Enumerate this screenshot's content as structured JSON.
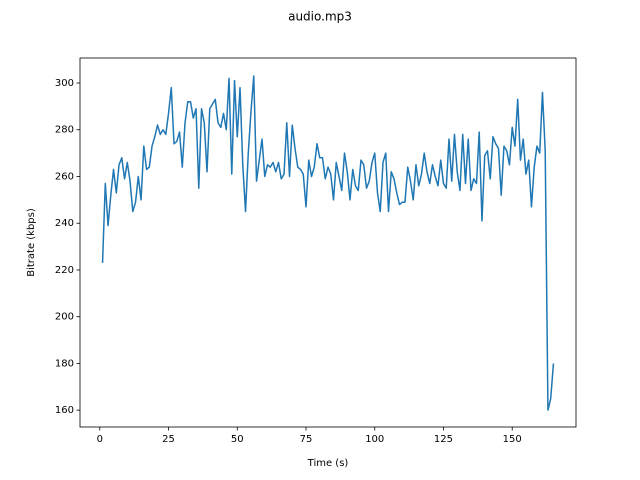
{
  "chart_data": {
    "type": "line",
    "title": "audio.mp3",
    "x_label": "Time (s)",
    "y_label": "Bitrate (kbps)",
    "x": [
      1,
      2,
      3,
      4,
      5,
      6,
      7,
      8,
      9,
      10,
      11,
      12,
      13,
      14,
      15,
      16,
      17,
      18,
      19,
      20,
      21,
      22,
      23,
      24,
      25,
      26,
      27,
      28,
      29,
      30,
      31,
      32,
      33,
      34,
      35,
      36,
      37,
      38,
      39,
      40,
      41,
      42,
      43,
      44,
      45,
      46,
      47,
      48,
      49,
      50,
      51,
      52,
      53,
      54,
      55,
      56,
      57,
      58,
      59,
      60,
      61,
      62,
      63,
      64,
      65,
      66,
      67,
      68,
      69,
      70,
      71,
      72,
      73,
      74,
      75,
      76,
      77,
      78,
      79,
      80,
      81,
      82,
      83,
      84,
      85,
      86,
      87,
      88,
      89,
      90,
      91,
      92,
      93,
      94,
      95,
      96,
      97,
      98,
      99,
      100,
      101,
      102,
      103,
      104,
      105,
      106,
      107,
      108,
      109,
      110,
      111,
      112,
      113,
      114,
      115,
      116,
      117,
      118,
      119,
      120,
      121,
      122,
      123,
      124,
      125,
      126,
      127,
      128,
      129,
      130,
      131,
      132,
      133,
      134,
      135,
      136,
      137,
      138,
      139,
      140,
      141,
      142,
      143,
      144,
      145,
      146,
      147,
      148,
      149,
      150,
      151,
      152,
      153,
      154,
      155,
      156,
      157,
      158,
      159,
      160,
      161,
      162,
      163,
      164,
      165
    ],
    "series": [
      {
        "name": "bitrate",
        "color": "#1f77b4",
        "values": [
          223,
          257,
          239,
          252,
          263,
          253,
          265,
          268,
          259,
          266,
          258,
          245,
          249,
          260,
          250,
          273,
          263,
          264,
          273,
          277,
          282,
          278,
          280,
          278,
          287,
          298,
          274,
          275,
          279,
          264,
          283,
          292,
          292,
          285,
          289,
          255,
          289,
          283,
          262,
          289,
          291,
          293,
          283,
          281,
          287,
          280,
          302,
          261,
          301,
          277,
          298,
          265,
          245,
          270,
          288,
          303,
          258,
          267,
          276,
          260,
          265,
          264,
          266,
          262,
          266,
          259,
          261,
          283,
          260,
          282,
          272,
          264,
          263,
          261,
          247,
          267,
          260,
          264,
          274,
          268,
          268,
          259,
          264,
          261,
          250,
          266,
          260,
          254,
          270,
          262,
          250,
          263,
          256,
          254,
          267,
          265,
          255,
          258,
          266,
          270,
          253,
          245,
          266,
          270,
          245,
          262,
          259,
          253,
          248,
          249,
          249,
          264,
          258,
          250,
          265,
          256,
          261,
          270,
          262,
          257,
          265,
          260,
          256,
          267,
          257,
          255,
          276,
          258,
          278,
          262,
          254,
          278,
          257,
          276,
          254,
          259,
          257,
          279,
          241,
          269,
          271,
          259,
          277,
          274,
          272,
          252,
          273,
          271,
          265,
          281,
          273,
          293,
          267,
          276,
          261,
          267,
          247,
          264,
          273,
          270,
          296,
          271,
          160,
          165,
          180
        ]
      }
    ],
    "xlim": [
      -7.2,
      173.2
    ],
    "ylim": [
      152.8,
      310.7
    ],
    "xticks": [
      0,
      25,
      50,
      75,
      100,
      125,
      150
    ],
    "yticks": [
      160,
      180,
      200,
      220,
      240,
      260,
      280,
      300
    ]
  }
}
